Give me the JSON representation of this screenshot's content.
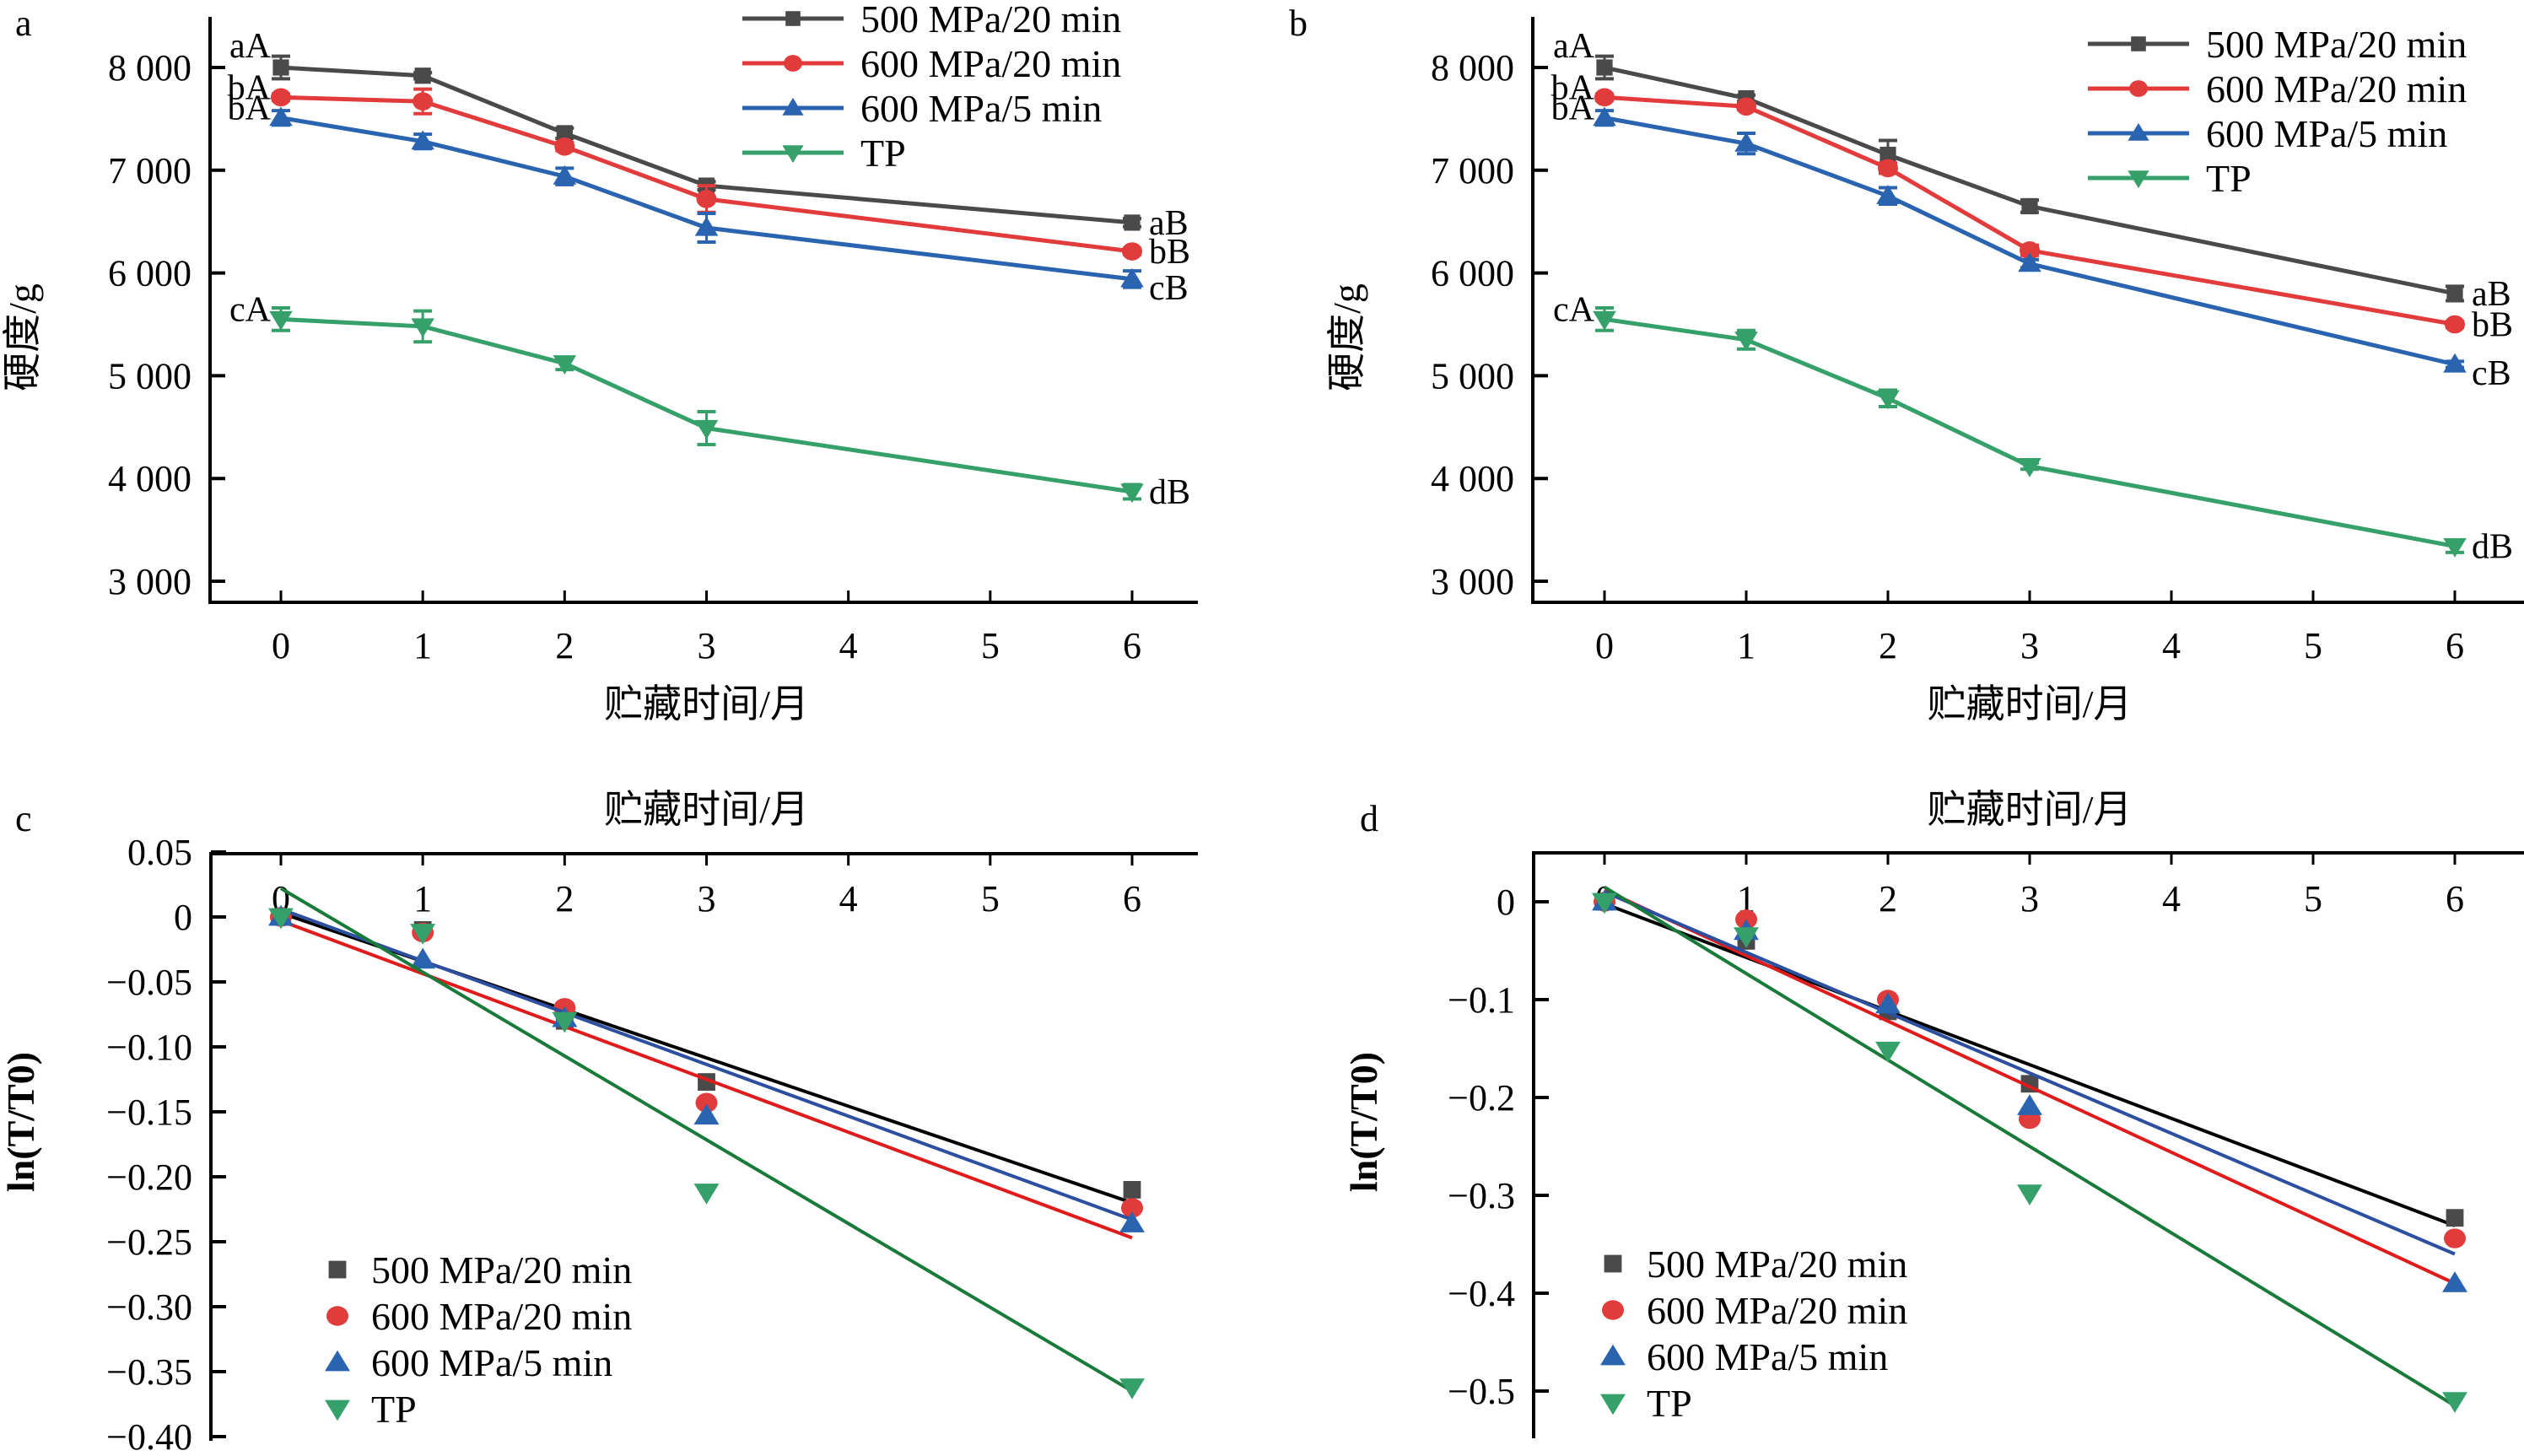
{
  "series_styles": [
    {
      "name": "500 MPa/20 min",
      "marker": "square",
      "color": "#4a4a4a",
      "fit_color": "#000000"
    },
    {
      "name": "600 MPa/20 min",
      "marker": "circle",
      "color": "#e23b3b",
      "fit_color": "#e01b1b"
    },
    {
      "name": "600 MPa/5 min",
      "marker": "triangle-up",
      "color": "#2a64b0",
      "fit_color": "#2c4fa0"
    },
    {
      "name": "TP",
      "marker": "triangle-down",
      "color": "#36a06a",
      "fit_color": "#1a7a3a"
    }
  ],
  "chart_data": [
    {
      "panel": "a",
      "type": "line",
      "xlabel": "贮藏时间/月",
      "ylabel": "硬度/g",
      "x_ticks": [
        0,
        1,
        2,
        3,
        4,
        5,
        6
      ],
      "xlim": [
        -0.5,
        6.5
      ],
      "ylim": [
        2800,
        8500
      ],
      "y_ticks": [
        3000,
        4000,
        5000,
        6000,
        7000,
        8000
      ],
      "y_tick_labels": [
        "3 000",
        "4 000",
        "5 000",
        "6 000",
        "7 000",
        "8 000"
      ],
      "legend": "top-right",
      "x": [
        0,
        1,
        2,
        3,
        6
      ],
      "series": [
        {
          "name": "500 MPa/20 min",
          "values": [
            8000,
            7920,
            7360,
            6850,
            6490
          ],
          "errors": [
            110,
            30,
            50,
            40,
            40
          ],
          "label_start": "aA",
          "label_end": "aB"
        },
        {
          "name": "600 MPa/20 min",
          "values": [
            7710,
            7670,
            7230,
            6720,
            6210
          ],
          "errors": [
            30,
            120,
            40,
            130,
            30
          ],
          "label_start": "bA",
          "label_end": "bB"
        },
        {
          "name": "600 MPa/5 min",
          "values": [
            7510,
            7280,
            6940,
            6440,
            5940
          ],
          "errors": [
            70,
            70,
            80,
            140,
            80
          ],
          "label_start": "bA",
          "label_end": "cB"
        },
        {
          "name": "TP",
          "values": [
            5550,
            5480,
            5120,
            4490,
            3870
          ],
          "errors": [
            110,
            150,
            60,
            160,
            70
          ],
          "label_start": "cA",
          "label_end": "dB"
        }
      ]
    },
    {
      "panel": "b",
      "type": "line",
      "xlabel": "贮藏时间/月",
      "ylabel": "硬度/g",
      "x_ticks": [
        0,
        1,
        2,
        3,
        4,
        5,
        6
      ],
      "xlim": [
        -0.5,
        6.5
      ],
      "ylim": [
        2800,
        8500
      ],
      "y_ticks": [
        3000,
        4000,
        5000,
        6000,
        7000,
        8000
      ],
      "y_tick_labels": [
        "3 000",
        "4 000",
        "5 000",
        "6 000",
        "7 000",
        "8 000"
      ],
      "legend": "top-right",
      "x": [
        0,
        1,
        2,
        3,
        6
      ],
      "series": [
        {
          "name": "500 MPa/20 min",
          "values": [
            8000,
            7700,
            7150,
            6650,
            5800
          ],
          "errors": [
            110,
            30,
            140,
            60,
            70
          ],
          "label_start": "aA",
          "label_end": "aB"
        },
        {
          "name": "600 MPa/20 min",
          "values": [
            7710,
            7620,
            7020,
            6220,
            5500
          ],
          "errors": [
            30,
            30,
            50,
            50,
            30
          ],
          "label_start": "bA",
          "label_end": "bB"
        },
        {
          "name": "600 MPa/5 min",
          "values": [
            7510,
            7260,
            6750,
            6090,
            5110
          ],
          "errors": [
            70,
            100,
            80,
            40,
            30
          ],
          "label_start": "bA",
          "label_end": "cB"
        },
        {
          "name": "TP",
          "values": [
            5550,
            5350,
            4780,
            4120,
            3340
          ],
          "errors": [
            110,
            90,
            80,
            30,
            60
          ],
          "label_start": "cA",
          "label_end": "dB"
        }
      ]
    },
    {
      "panel": "c",
      "type": "scatter",
      "xlabel": "贮藏时间/月",
      "ylabel": "ln(T/T0)",
      "x_ticks": [
        0,
        1,
        2,
        3,
        4,
        5,
        6
      ],
      "xlim": [
        -0.5,
        6.5
      ],
      "ylim": [
        -0.4,
        0.05
      ],
      "y_ticks": [
        0.05,
        0,
        -0.05,
        -0.1,
        -0.15,
        -0.2,
        -0.25,
        -0.3,
        -0.35,
        -0.4
      ],
      "y_tick_labels": [
        "0.05",
        "0",
        "−0.05",
        "−0.10",
        "−0.15",
        "−0.20",
        "−0.25",
        "−0.30",
        "−0.35",
        "−0.40"
      ],
      "legend": "bottom-left",
      "x": [
        0,
        1,
        2,
        3,
        6
      ],
      "series": [
        {
          "name": "500 MPa/20 min",
          "values": [
            0,
            -0.01,
            -0.08,
            -0.127,
            -0.21
          ],
          "fit": [
            0.003,
            -0.22
          ]
        },
        {
          "name": "600 MPa/20 min",
          "values": [
            0,
            -0.012,
            -0.07,
            -0.143,
            -0.224
          ],
          "fit": [
            -0.003,
            -0.247
          ]
        },
        {
          "name": "600 MPa/5 min",
          "values": [
            0,
            -0.033,
            -0.078,
            -0.153,
            -0.236
          ],
          "fit": [
            0.006,
            -0.233
          ]
        },
        {
          "name": "TP",
          "values": [
            0,
            -0.012,
            -0.08,
            -0.212,
            -0.362
          ],
          "fit": [
            0.022,
            -0.365
          ]
        }
      ]
    },
    {
      "panel": "d",
      "type": "scatter",
      "xlabel": "贮藏时间/月",
      "ylabel": "ln(T/T0)",
      "x_ticks": [
        0,
        1,
        2,
        3,
        4,
        5,
        6
      ],
      "xlim": [
        -0.5,
        6.5
      ],
      "ylim": [
        -0.55,
        0.05
      ],
      "y_ticks": [
        0,
        -0.1,
        -0.2,
        -0.3,
        -0.4,
        -0.5
      ],
      "y_tick_labels": [
        "0",
        "−0.1",
        "−0.2",
        "−0.3",
        "−0.4",
        "−0.5"
      ],
      "legend": "bottom-left",
      "x": [
        0,
        1,
        2,
        3,
        6
      ],
      "series": [
        {
          "name": "500 MPa/20 min",
          "values": [
            0,
            -0.04,
            -0.112,
            -0.186,
            -0.323
          ],
          "fit": [
            -0.002,
            -0.331
          ]
        },
        {
          "name": "600 MPa/20 min",
          "values": [
            0,
            -0.018,
            -0.1,
            -0.222,
            -0.344
          ],
          "fit": [
            0.012,
            -0.39
          ]
        },
        {
          "name": "600 MPa/5 min",
          "values": [
            0,
            -0.03,
            -0.105,
            -0.209,
            -0.39
          ],
          "fit": [
            0.01,
            -0.36
          ]
        },
        {
          "name": "TP",
          "values": [
            0,
            -0.035,
            -0.152,
            -0.298,
            -0.51
          ],
          "fit": [
            0.015,
            -0.515
          ]
        }
      ]
    }
  ]
}
